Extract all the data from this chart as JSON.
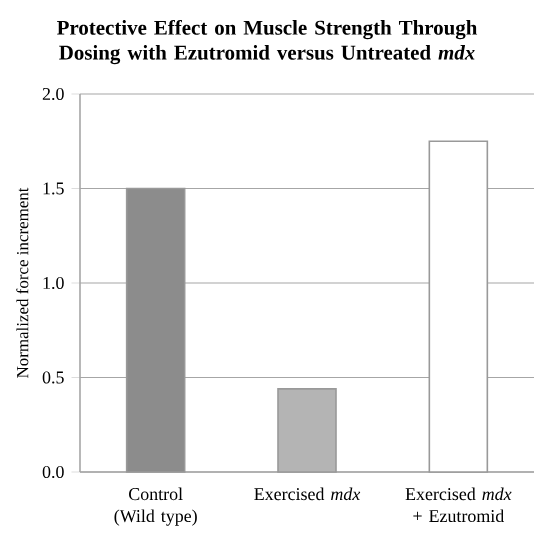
{
  "chart_data": {
    "type": "bar",
    "title": "Protective Effect on Muscle Strength Through Dosing with Ezutromid versus Untreated *mdx*",
    "ylabel": "Normalized force increment",
    "categories": [
      "Control (Wild type)",
      "Exercised *mdx*",
      "Exercised *mdx* + Ezutromid"
    ],
    "values": [
      1.5,
      0.44,
      1.75
    ],
    "colors": [
      "#8c8c8c",
      "#b4b4b4",
      "#ffffff"
    ],
    "ylim": [
      0,
      2.0
    ],
    "yticks": [
      {
        "value": 0,
        "label": "0.0"
      },
      {
        "value": 0.5,
        "label": "0.5"
      },
      {
        "value": 1.0,
        "label": "1.0"
      },
      {
        "value": 1.5,
        "label": "1.5"
      },
      {
        "value": 2.0,
        "label": "2.0"
      }
    ],
    "grid": "y"
  }
}
